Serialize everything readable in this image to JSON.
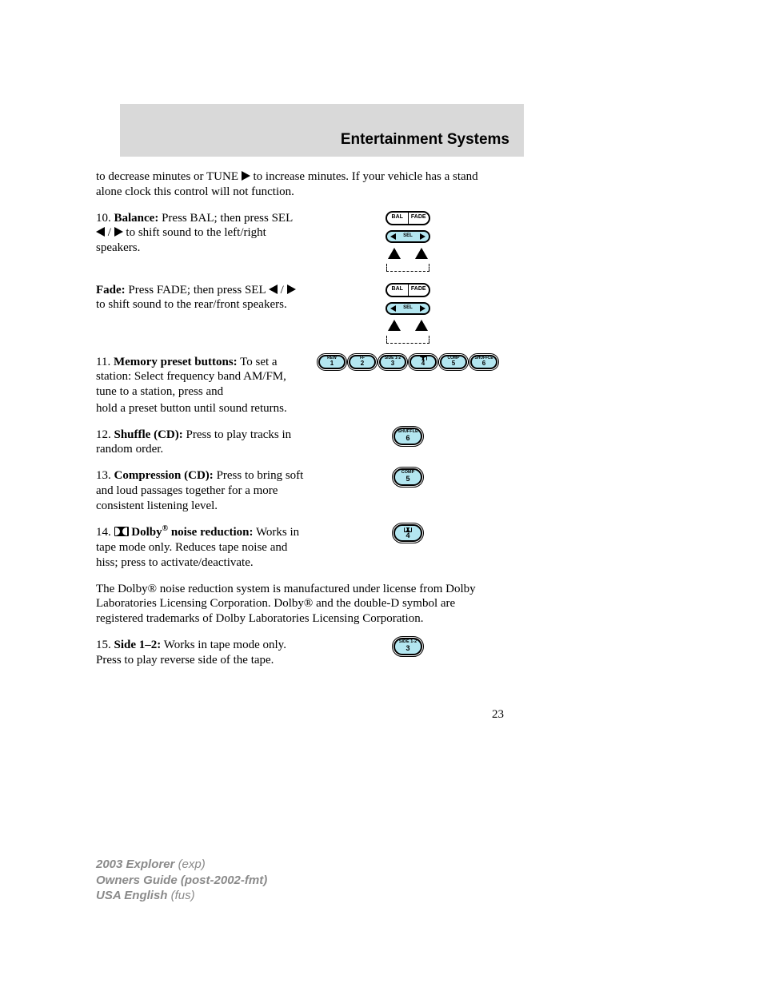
{
  "header": {
    "title": "Entertainment Systems"
  },
  "intro": {
    "pre": "to decrease minutes or TUNE ",
    "post": " to increase minutes. If your vehicle has a stand alone clock this control will not function."
  },
  "item10": {
    "num": "10. ",
    "label": "Balance:",
    "text": " Press BAL; then press SEL ",
    "text2": " to shift sound to the left/right speakers."
  },
  "fade": {
    "label": "Fade:",
    "text": " Press FADE; then press SEL ",
    "text2": " to shift sound to the rear/front speakers."
  },
  "item11": {
    "num": "11. ",
    "label": "Memory preset buttons:",
    "text": " To set a station: Select frequency band AM/FM, tune to a station, press and hold a preset button until sound returns."
  },
  "item12": {
    "num": "12. ",
    "label": "Shuffle (CD):",
    "text": " Press to play tracks in random order."
  },
  "item13": {
    "num": "13. ",
    "label": "Compression (CD):",
    "text": " Press to bring soft and loud passages together for a more consistent listening level."
  },
  "item14": {
    "num": "14. ",
    "label": " Dolby",
    "label2": " noise reduction:",
    "text": " Works in tape mode only. Reduces tape noise and hiss; press to activate/deactivate."
  },
  "trademark": "The Dolby® noise reduction system is manufactured under license from Dolby Laboratories Licensing Corporation. Dolby® and the double-D symbol are registered trademarks of Dolby Laboratories Licensing Corporation.",
  "item15": {
    "num": "15. ",
    "label": "Side 1–2:",
    "text": " Works in tape mode only. Press to play reverse side of the tape."
  },
  "buttons": {
    "bal": "BAL",
    "fade": "FADE",
    "sel": "SEL",
    "presets": [
      {
        "label": "REW",
        "num": "1"
      },
      {
        "label": "FF",
        "num": "2"
      },
      {
        "label": "SIDE 1-2",
        "num": "3"
      },
      {
        "label": "DOLBY",
        "num": "4",
        "dolby": true
      },
      {
        "label": "COMP",
        "num": "5"
      },
      {
        "label": "SHUFFLE",
        "num": "6"
      }
    ],
    "shuffle": {
      "label": "SHUFFLE",
      "num": "6"
    },
    "comp": {
      "label": "COMP",
      "num": "5"
    },
    "dolby": {
      "num": "4",
      "dolby": true
    },
    "side": {
      "label": "SIDE 1-2",
      "num": "3"
    }
  },
  "colors": {
    "header_bg": "#d9d9d9",
    "button_fill": "#b3e6f0",
    "text": "#000000",
    "footer_text": "#8a8a8a"
  },
  "page_number": "23",
  "footer": {
    "line1a": "2003 Explorer ",
    "line1b": "(exp)",
    "line2": "Owners Guide (post-2002-fmt)",
    "line3a": "USA English ",
    "line3b": "(fus)"
  }
}
